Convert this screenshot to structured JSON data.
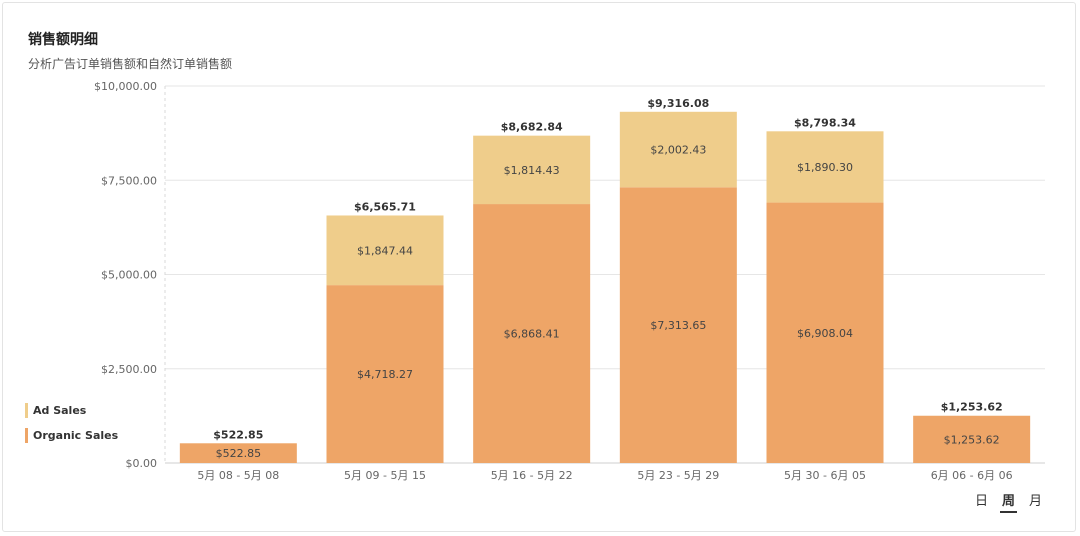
{
  "header": {
    "title": "销售额明细",
    "subtitle": "分析广告订单销售额和自然订单销售额"
  },
  "period_switch": {
    "options": [
      "日",
      "周",
      "月"
    ],
    "active": "周"
  },
  "colors": {
    "organic": "#EEA567",
    "ad": "#EFCD8B",
    "grid": "#e6e6e6",
    "axis_text": "#666666",
    "label_text": "#444444",
    "total_text": "#333333"
  },
  "chart_data": {
    "type": "bar",
    "stacked": true,
    "title": "销售额明细",
    "xlabel": "",
    "ylabel": "",
    "ylim": [
      0,
      10000
    ],
    "yticks": [
      0,
      2500,
      5000,
      7500,
      10000
    ],
    "ytick_labels": [
      "$0.00",
      "$2,500.00",
      "$5,000.00",
      "$7,500.00",
      "$10,000.00"
    ],
    "categories": [
      "5月 08 - 5月 08",
      "5月 09 - 5月 15",
      "5月 16 - 5月 22",
      "5月 23 - 5月 29",
      "5月 30 - 6月 05",
      "6月 06 - 6月 06"
    ],
    "series": [
      {
        "name": "Organic Sales",
        "values": [
          522.85,
          4718.27,
          6868.41,
          7313.65,
          6908.04,
          1253.62
        ],
        "labels": [
          "$522.85",
          "$4,718.27",
          "$6,868.41",
          "$7,313.65",
          "$6,908.04",
          "$1,253.62"
        ]
      },
      {
        "name": "Ad Sales",
        "values": [
          0,
          1847.44,
          1814.43,
          2002.43,
          1890.3,
          0
        ],
        "labels": [
          "",
          "$1,847.44",
          "$1,814.43",
          "$2,002.43",
          "$1,890.30",
          ""
        ]
      }
    ],
    "totals": [
      522.85,
      6565.71,
      8682.84,
      9316.08,
      8798.34,
      1253.62
    ],
    "total_labels": [
      "$522.85",
      "$6,565.71",
      "$8,682.84",
      "$9,316.08",
      "$8,798.34",
      "$1,253.62"
    ],
    "legend": [
      "Ad Sales",
      "Organic Sales"
    ],
    "legend_position": "left"
  }
}
